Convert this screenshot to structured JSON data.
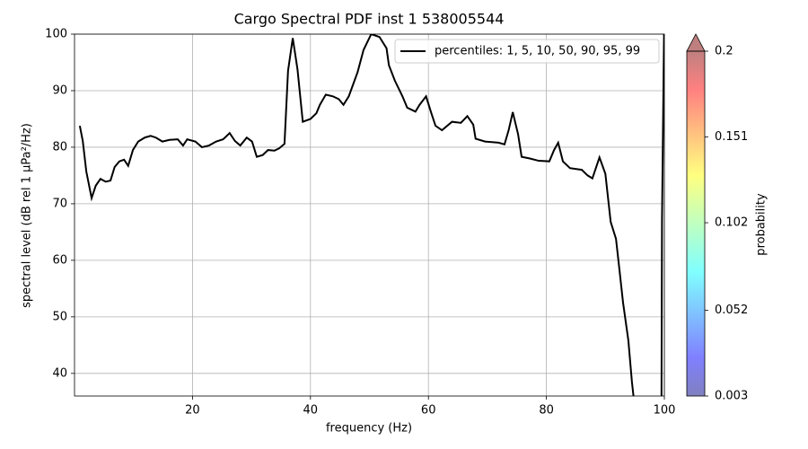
{
  "chart_data": {
    "type": "line",
    "title": "Cargo Spectral PDF inst 1 538005544",
    "x_label": "frequency (Hz)",
    "y_label": "spectral level (dB rel 1 µPa²/Hz)",
    "xlim": [
      0,
      100
    ],
    "ylim": [
      36,
      100
    ],
    "xticks": [
      20,
      40,
      60,
      80,
      100
    ],
    "yticks": [
      40,
      50,
      60,
      70,
      80,
      90,
      100
    ],
    "grid": true,
    "legend_position": "upper right",
    "x": [
      0.9,
      1.4,
      2.0,
      2.9,
      3.6,
      4.4,
      5.3,
      6.1,
      6.8,
      7.6,
      8.4,
      9.1,
      9.9,
      10.8,
      11.9,
      12.9,
      13.8,
      14.9,
      16.1,
      17.5,
      18.4,
      19.1,
      20.5,
      21.6,
      22.8,
      24.0,
      25.2,
      26.3,
      27.2,
      28.1,
      29.2,
      30.1,
      30.9,
      31.9,
      32.8,
      33.9,
      34.7,
      35.6,
      36.2,
      37.0,
      37.8,
      38.7,
      40.0,
      41.0,
      41.6,
      42.6,
      43.8,
      44.8,
      45.6,
      46.5,
      48.0,
      49.0,
      50.3,
      51.7,
      52.9,
      53.3,
      54.3,
      55.6,
      56.4,
      57.8,
      58.5,
      59.6,
      60.5,
      61.2,
      62.3,
      64.0,
      65.5,
      66.6,
      67.6,
      68.0,
      69.6,
      71.9,
      72.9,
      73.6,
      74.3,
      75.2,
      75.8,
      77.2,
      78.7,
      80.5,
      81.3,
      82.0,
      82.8,
      84.0,
      86.0,
      87.0,
      87.8,
      89.0,
      90.0,
      90.9,
      91.8,
      92.4,
      93.0,
      93.9,
      94.5,
      95.4,
      99.5,
      99.6,
      100.0
    ],
    "series": [
      {
        "name": "percentiles: 1, 5, 10, 50, 90, 95, 99",
        "color": "#000000",
        "values": [
          83.8,
          81.1,
          75.7,
          71.0,
          73.2,
          74.4,
          73.9,
          74.1,
          76.5,
          77.5,
          77.8,
          76.7,
          79.5,
          81.0,
          81.7,
          82.0,
          81.7,
          81.0,
          81.3,
          81.4,
          80.3,
          81.4,
          81.0,
          80.0,
          80.3,
          81.0,
          81.4,
          82.5,
          81.1,
          80.3,
          81.7,
          81.0,
          78.3,
          78.6,
          79.5,
          79.4,
          79.8,
          80.6,
          93.5,
          99.3,
          93.8,
          84.5,
          85.0,
          86.0,
          87.5,
          89.3,
          89.0,
          88.5,
          87.5,
          89.0,
          93.3,
          97.2,
          100.0,
          99.5,
          97.5,
          94.5,
          91.8,
          89.0,
          87.0,
          86.3,
          87.5,
          89.0,
          86.0,
          83.8,
          83.0,
          84.5,
          84.3,
          85.5,
          84.0,
          81.5,
          81.0,
          80.8,
          80.5,
          83.0,
          86.2,
          82.3,
          78.3,
          78.0,
          77.6,
          77.5,
          79.5,
          80.8,
          77.5,
          76.3,
          76.0,
          75.0,
          74.5,
          78.2,
          75.3,
          66.8,
          63.8,
          58.2,
          52.5,
          45.8,
          38.5,
          30.0,
          30.0,
          67.0,
          105.0
        ]
      }
    ],
    "colorbar": {
      "label": "probability",
      "clim": [
        0.003,
        0.2
      ],
      "ticks": [
        0.003,
        0.052,
        0.102,
        0.151,
        0.2
      ],
      "colormap": "jet",
      "extend": "max"
    }
  }
}
